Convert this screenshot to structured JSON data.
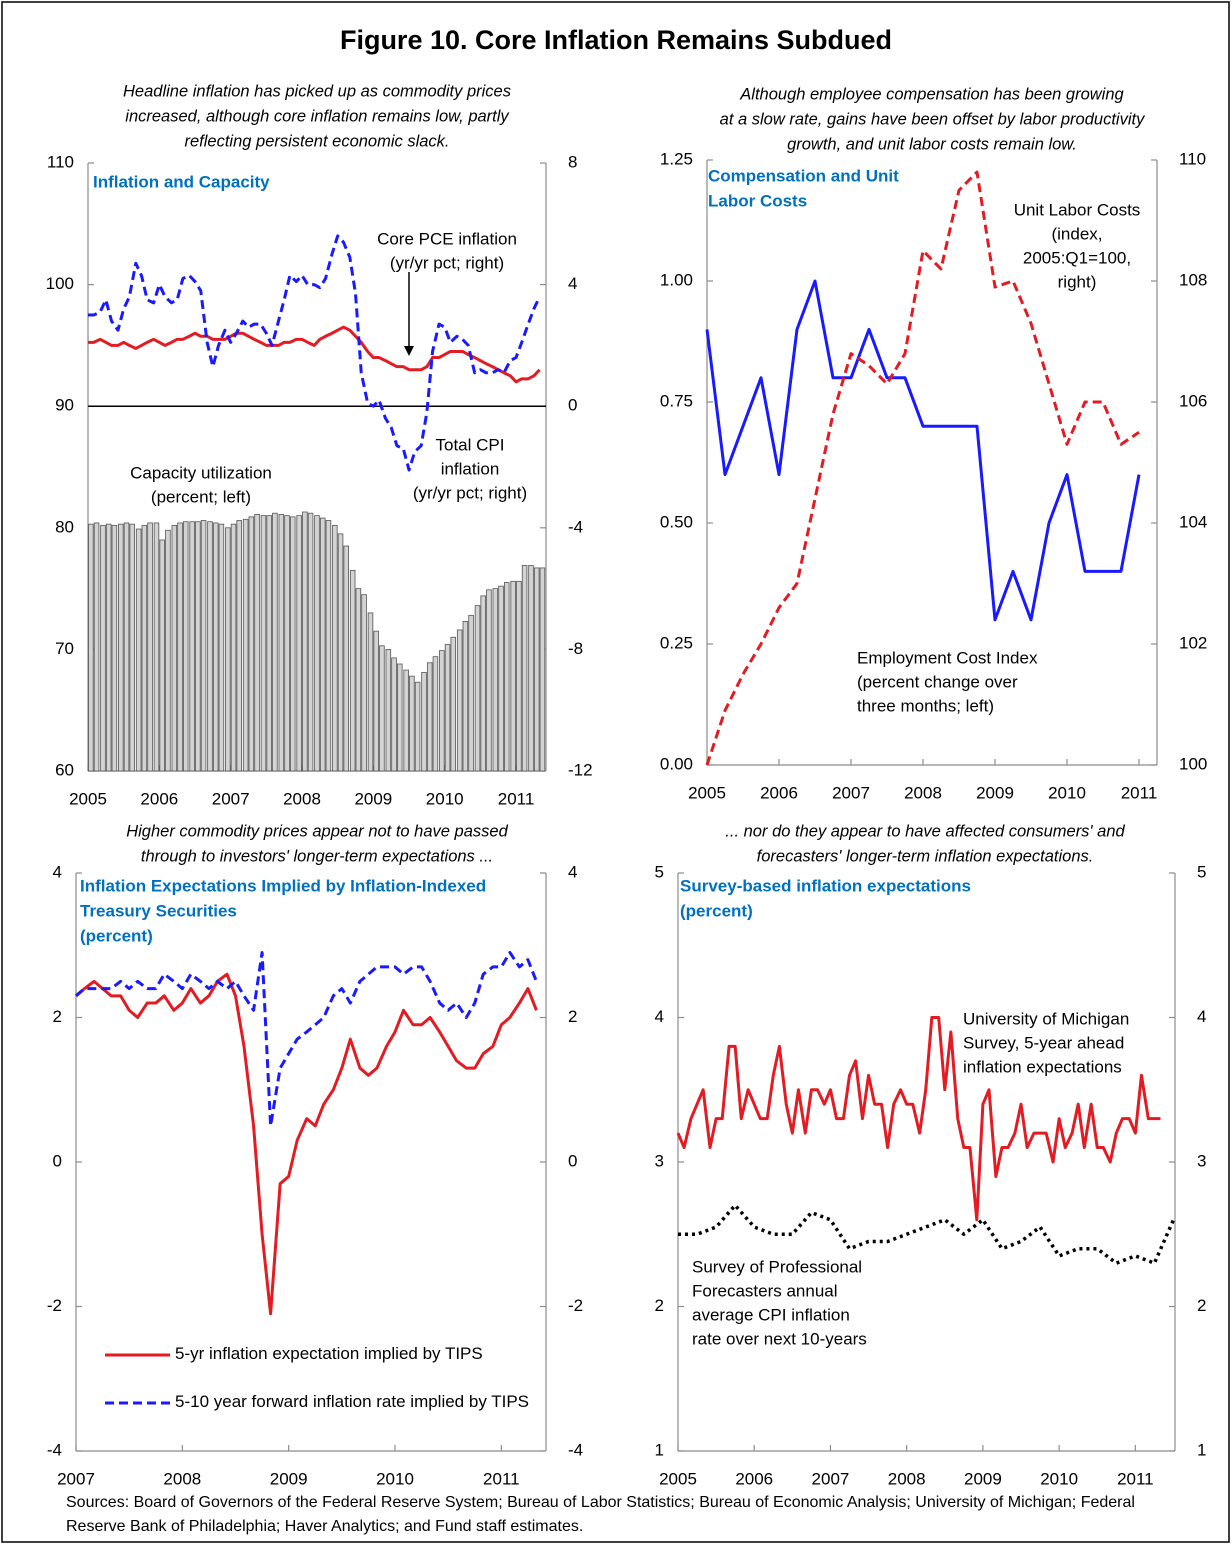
{
  "title": "Figure 10. Core Inflation Remains Subdued",
  "sources": "Sources: Board of Governors of the Federal Reserve System; Bureau of Labor Statistics; Bureau of Economic Analysis; University of Michigan; Federal Reserve Bank of Philadelphia; Haver Analytics; and Fund staff estimates.",
  "chart_data": [
    {
      "type": "combo",
      "subtitle": [
        "Headline inflation has picked up as commodity prices",
        "increased, although core inflation remains low, partly",
        "reflecting persistent economic slack."
      ],
      "title": [
        "Inflation and Capacity"
      ],
      "x": [
        2005,
        2005.08,
        2005.17,
        2005.25,
        2005.33,
        2005.42,
        2005.5,
        2005.58,
        2005.67,
        2005.75,
        2005.83,
        2005.92,
        2006,
        2006.08,
        2006.17,
        2006.25,
        2006.33,
        2006.42,
        2006.5,
        2006.58,
        2006.67,
        2006.75,
        2006.83,
        2006.92,
        2007,
        2007.08,
        2007.17,
        2007.25,
        2007.33,
        2007.42,
        2007.5,
        2007.58,
        2007.67,
        2007.75,
        2007.83,
        2007.92,
        2008,
        2008.08,
        2008.17,
        2008.25,
        2008.33,
        2008.42,
        2008.5,
        2008.58,
        2008.67,
        2008.75,
        2008.83,
        2008.92,
        2009,
        2009.08,
        2009.17,
        2009.25,
        2009.33,
        2009.42,
        2009.5,
        2009.58,
        2009.67,
        2009.75,
        2009.83,
        2009.92,
        2010,
        2010.08,
        2010.17,
        2010.25,
        2010.33,
        2010.42,
        2010.5,
        2010.58,
        2010.67,
        2010.75,
        2010.83,
        2010.92,
        2011,
        2011.08,
        2011.17,
        2011.25,
        2011.33
      ],
      "xlim": [
        2005,
        2011.42
      ],
      "xticks": [
        2005,
        2006,
        2007,
        2008,
        2009,
        2010,
        2011
      ],
      "ylim": [
        60,
        110
      ],
      "yticks": [
        60,
        70,
        80,
        90,
        100,
        110
      ],
      "y2lim": [
        -12,
        8
      ],
      "y2ticks": [
        -12,
        -8,
        -4,
        0,
        4,
        8
      ],
      "zero_line": "y2",
      "series": [
        {
          "type": "bar",
          "label": [
            "Capacity utilization",
            "(percent; left)"
          ],
          "color": "#d3d3d3",
          "values": [
            80.3,
            80.4,
            80.2,
            80.3,
            80.2,
            80.3,
            80.4,
            80.3,
            79.9,
            80.2,
            80.4,
            80.4,
            79.0,
            79.8,
            80.2,
            80.4,
            80.5,
            80.5,
            80.5,
            80.6,
            80.5,
            80.4,
            80.3,
            80.0,
            80.3,
            80.6,
            80.7,
            80.9,
            81.1,
            81.0,
            81.0,
            81.2,
            81.1,
            81.0,
            80.9,
            81.0,
            81.3,
            81.2,
            81.0,
            80.8,
            80.6,
            80.2,
            79.5,
            78.5,
            76.5,
            75.0,
            74.5,
            73.0,
            71.5,
            70.3,
            70.0,
            69.3,
            68.8,
            68.3,
            67.8,
            67.3,
            68.1,
            68.9,
            69.4,
            69.9,
            70.4,
            71.0,
            71.6,
            72.3,
            72.8,
            73.6,
            74.4,
            74.9,
            75.0,
            75.2,
            75.5,
            75.6,
            75.6,
            76.9,
            76.9,
            76.7,
            76.7
          ]
        },
        {
          "type": "line",
          "label": [
            "Core PCE inflation",
            "(yr/yr pct; right)"
          ],
          "color": "#e31b23",
          "dash": "solid",
          "axis": "y2",
          "values": [
            2.1,
            2.1,
            2.2,
            2.1,
            2.0,
            2.0,
            2.1,
            2.0,
            1.9,
            2.0,
            2.1,
            2.2,
            2.1,
            2.0,
            2.1,
            2.2,
            2.2,
            2.3,
            2.4,
            2.3,
            2.3,
            2.2,
            2.2,
            2.2,
            2.3,
            2.4,
            2.4,
            2.3,
            2.2,
            2.1,
            2.0,
            2.0,
            2.0,
            2.1,
            2.1,
            2.2,
            2.2,
            2.1,
            2.0,
            2.2,
            2.3,
            2.4,
            2.5,
            2.6,
            2.5,
            2.3,
            2.1,
            1.8,
            1.6,
            1.6,
            1.5,
            1.4,
            1.3,
            1.3,
            1.2,
            1.2,
            1.2,
            1.3,
            1.6,
            1.6,
            1.7,
            1.8,
            1.8,
            1.8,
            1.7,
            1.6,
            1.5,
            1.4,
            1.3,
            1.2,
            1.1,
            1.0,
            0.8,
            0.9,
            0.9,
            1.0,
            1.2
          ]
        },
        {
          "type": "line",
          "label": [
            "Total CPI",
            "inflation",
            "(yr/yr pct; right)"
          ],
          "color": "#1a1aff",
          "dash": "dashed",
          "axis": "y2",
          "values": [
            3.0,
            3.0,
            3.1,
            3.5,
            2.8,
            2.5,
            3.2,
            3.6,
            4.7,
            4.3,
            3.5,
            3.4,
            4.0,
            3.6,
            3.4,
            3.5,
            4.2,
            4.3,
            4.1,
            3.8,
            2.1,
            1.3,
            2.0,
            2.5,
            2.1,
            2.4,
            2.8,
            2.6,
            2.7,
            2.7,
            2.4,
            2.0,
            2.8,
            3.5,
            4.3,
            4.1,
            4.3,
            4.0,
            4.0,
            3.9,
            4.2,
            5.0,
            5.6,
            5.4,
            4.9,
            3.7,
            1.1,
            0.1,
            0.0,
            0.2,
            -0.4,
            -0.7,
            -1.3,
            -1.4,
            -2.1,
            -1.5,
            -1.3,
            -0.2,
            1.8,
            2.7,
            2.6,
            2.1,
            2.3,
            2.2,
            2.0,
            1.1,
            1.2,
            1.1,
            1.1,
            1.2,
            1.1,
            1.5,
            1.6,
            2.1,
            2.7,
            3.2,
            3.6
          ]
        }
      ]
    },
    {
      "type": "line",
      "subtitle": [
        "Although employee compensation has been growing",
        "at a slow rate, gains have been offset by labor productivity",
        "growth, and unit labor costs remain low."
      ],
      "title": [
        "Compensation and Unit",
        "Labor Costs"
      ],
      "x": [
        2005,
        2005.25,
        2005.5,
        2005.75,
        2006,
        2006.25,
        2006.5,
        2006.75,
        2007,
        2007.25,
        2007.5,
        2007.75,
        2008,
        2008.25,
        2008.5,
        2008.75,
        2009,
        2009.25,
        2009.5,
        2009.75,
        2010,
        2010.25,
        2010.5,
        2010.75,
        2011
      ],
      "xlim": [
        2005,
        2011.25
      ],
      "xticks": [
        2005,
        2006,
        2007,
        2008,
        2009,
        2010,
        2011
      ],
      "ylim": [
        0,
        1.25
      ],
      "yticks": [
        {
          "value": 0,
          "label": "0.00"
        },
        {
          "value": 0.25,
          "label": "0.25"
        },
        {
          "value": 0.5,
          "label": "0.50"
        },
        {
          "value": 0.75,
          "label": "0.75"
        },
        {
          "value": 1,
          "label": "1.00"
        },
        {
          "value": 1.25,
          "label": "1.25"
        }
      ],
      "y2lim": [
        100,
        110
      ],
      "y2ticks": [
        100,
        102,
        104,
        106,
        108,
        110
      ],
      "series": [
        {
          "type": "line",
          "label": [
            "Employment Cost Index",
            "(percent change over",
            "three months; left)"
          ],
          "color": "#1a1aff",
          "dash": "solid",
          "values": [
            0.9,
            0.6,
            0.7,
            0.8,
            0.6,
            0.9,
            1.0,
            0.8,
            0.8,
            0.9,
            0.8,
            0.8,
            0.7,
            0.7,
            0.7,
            0.7,
            0.3,
            0.4,
            0.3,
            0.5,
            0.6,
            0.4,
            0.4,
            0.4,
            0.6
          ]
        },
        {
          "type": "line",
          "label": [
            "Unit Labor Costs",
            "(index,",
            "2005:Q1=100,",
            "right)"
          ],
          "color": "#e31b23",
          "dash": "dashed",
          "axis": "y2",
          "values": [
            100.0,
            100.9,
            101.5,
            102.0,
            102.6,
            103.0,
            104.4,
            105.8,
            106.8,
            106.6,
            106.3,
            106.8,
            108.5,
            108.2,
            109.5,
            109.8,
            107.9,
            108.0,
            107.3,
            106.3,
            105.3,
            106.0,
            106.0,
            105.3,
            105.5
          ]
        }
      ]
    },
    {
      "type": "line",
      "subtitle": [
        "Higher commodity prices appear not to have passed",
        "through to investors' longer-term expectations ..."
      ],
      "title": [
        "Inflation Expectations Implied by Inflation-Indexed",
        "Treasury Securities",
        "(percent)"
      ],
      "x": [
        2007,
        2007.08,
        2007.17,
        2007.25,
        2007.33,
        2007.42,
        2007.5,
        2007.58,
        2007.67,
        2007.75,
        2007.83,
        2007.92,
        2008,
        2008.08,
        2008.17,
        2008.25,
        2008.33,
        2008.42,
        2008.5,
        2008.58,
        2008.67,
        2008.75,
        2008.83,
        2008.92,
        2009,
        2009.08,
        2009.17,
        2009.25,
        2009.33,
        2009.42,
        2009.5,
        2009.58,
        2009.67,
        2009.75,
        2009.83,
        2009.92,
        2010,
        2010.08,
        2010.17,
        2010.25,
        2010.33,
        2010.42,
        2010.5,
        2010.58,
        2010.67,
        2010.75,
        2010.83,
        2010.92,
        2011,
        2011.08,
        2011.17,
        2011.25,
        2011.33
      ],
      "xlim": [
        2007,
        2011.42
      ],
      "xticks": [
        2007,
        2008,
        2009,
        2010,
        2011
      ],
      "ylim": [
        -4,
        4
      ],
      "yticks": [
        -4,
        -2,
        0,
        2,
        4
      ],
      "y2lim": [
        -4,
        4
      ],
      "y2ticks": [
        -4,
        -2,
        0,
        2,
        4
      ],
      "legend": "lower left",
      "series": [
        {
          "type": "line",
          "name": "5-yr inflation expectation implied by TIPS",
          "color": "#e31b23",
          "dash": "solid",
          "values": [
            2.3,
            2.4,
            2.5,
            2.4,
            2.3,
            2.3,
            2.1,
            2.0,
            2.2,
            2.2,
            2.3,
            2.1,
            2.2,
            2.4,
            2.2,
            2.3,
            2.5,
            2.6,
            2.3,
            1.6,
            0.5,
            -1.0,
            -2.1,
            -0.3,
            -0.2,
            0.3,
            0.6,
            0.5,
            0.8,
            1.0,
            1.3,
            1.7,
            1.3,
            1.2,
            1.3,
            1.6,
            1.8,
            2.1,
            1.9,
            1.9,
            2.0,
            1.8,
            1.6,
            1.4,
            1.3,
            1.3,
            1.5,
            1.6,
            1.9,
            2.0,
            2.2,
            2.4,
            2.1
          ]
        },
        {
          "type": "line",
          "name": "5-10 year forward inflation rate implied by TIPS",
          "color": "#1a1aff",
          "dash": "dashed",
          "values": [
            2.3,
            2.4,
            2.4,
            2.4,
            2.4,
            2.5,
            2.4,
            2.5,
            2.4,
            2.4,
            2.6,
            2.5,
            2.4,
            2.6,
            2.5,
            2.4,
            2.5,
            2.4,
            2.5,
            2.3,
            2.1,
            2.9,
            0.5,
            1.3,
            1.5,
            1.7,
            1.8,
            1.9,
            2.0,
            2.3,
            2.4,
            2.2,
            2.5,
            2.6,
            2.7,
            2.7,
            2.7,
            2.6,
            2.7,
            2.7,
            2.5,
            2.2,
            2.1,
            2.2,
            2.0,
            2.2,
            2.6,
            2.7,
            2.7,
            2.9,
            2.7,
            2.8,
            2.5
          ]
        }
      ]
    },
    {
      "type": "line",
      "subtitle": [
        "... nor do they appear to have affected consumers' and",
        "forecasters' longer-term inflation expectations."
      ],
      "title": [
        "Survey-based inflation expectations",
        "(percent)"
      ],
      "xlim": [
        2005,
        2011.52
      ],
      "xticks": [
        2005,
        2006,
        2007,
        2008,
        2009,
        2010,
        2011
      ],
      "ylim": [
        1,
        5
      ],
      "yticks": [
        1,
        2,
        3,
        4,
        5
      ],
      "y2lim": [
        1,
        5
      ],
      "y2ticks": [
        1,
        2,
        3,
        4,
        5
      ],
      "series": [
        {
          "type": "line",
          "label": [
            "University of Michigan",
            "Survey, 5-year ahead",
            "inflation expectations"
          ],
          "color": "#e31b23",
          "dash": "solid",
          "x": [
            2005,
            2005.08,
            2005.17,
            2005.25,
            2005.33,
            2005.42,
            2005.5,
            2005.58,
            2005.67,
            2005.75,
            2005.83,
            2005.92,
            2006,
            2006.08,
            2006.17,
            2006.25,
            2006.33,
            2006.42,
            2006.5,
            2006.58,
            2006.67,
            2006.75,
            2006.83,
            2006.92,
            2007,
            2007.08,
            2007.17,
            2007.25,
            2007.33,
            2007.42,
            2007.5,
            2007.58,
            2007.67,
            2007.75,
            2007.83,
            2007.92,
            2008,
            2008.08,
            2008.17,
            2008.25,
            2008.33,
            2008.42,
            2008.5,
            2008.58,
            2008.67,
            2008.75,
            2008.83,
            2008.92,
            2009,
            2009.08,
            2009.17,
            2009.25,
            2009.33,
            2009.42,
            2009.5,
            2009.58,
            2009.67,
            2009.75,
            2009.83,
            2009.92,
            2010,
            2010.08,
            2010.17,
            2010.25,
            2010.33,
            2010.42,
            2010.5,
            2010.58,
            2010.67,
            2010.75,
            2010.83,
            2010.92,
            2011,
            2011.08,
            2011.17,
            2011.25,
            2011.33
          ],
          "values": [
            3.2,
            3.1,
            3.3,
            3.4,
            3.5,
            3.1,
            3.3,
            3.3,
            3.8,
            3.8,
            3.3,
            3.5,
            3.4,
            3.3,
            3.3,
            3.6,
            3.8,
            3.4,
            3.2,
            3.5,
            3.2,
            3.5,
            3.5,
            3.4,
            3.5,
            3.3,
            3.3,
            3.6,
            3.7,
            3.3,
            3.6,
            3.4,
            3.4,
            3.1,
            3.4,
            3.5,
            3.4,
            3.4,
            3.2,
            3.5,
            4.0,
            4.0,
            3.5,
            3.9,
            3.3,
            3.1,
            3.1,
            2.6,
            3.4,
            3.5,
            2.9,
            3.1,
            3.1,
            3.2,
            3.4,
            3.1,
            3.2,
            3.2,
            3.2,
            3.0,
            3.3,
            3.1,
            3.2,
            3.4,
            3.1,
            3.4,
            3.1,
            3.1,
            3.0,
            3.2,
            3.3,
            3.3,
            3.2,
            3.6,
            3.3,
            3.3,
            3.3
          ]
        },
        {
          "type": "line",
          "label": [
            "Survey of Professional",
            "Forecasters annual",
            "average CPI inflation",
            "rate over next 10-years"
          ],
          "color": "#000000",
          "dash": "dotted",
          "x": [
            2005,
            2005.25,
            2005.5,
            2005.75,
            2006,
            2006.25,
            2006.5,
            2006.75,
            2007,
            2007.25,
            2007.5,
            2007.75,
            2008,
            2008.25,
            2008.5,
            2008.75,
            2009,
            2009.25,
            2009.5,
            2009.75,
            2010,
            2010.25,
            2010.5,
            2010.75,
            2011,
            2011.25,
            2011.5
          ],
          "values": [
            2.5,
            2.5,
            2.55,
            2.7,
            2.55,
            2.5,
            2.5,
            2.65,
            2.6,
            2.4,
            2.45,
            2.45,
            2.5,
            2.55,
            2.6,
            2.5,
            2.6,
            2.4,
            2.45,
            2.55,
            2.35,
            2.4,
            2.4,
            2.3,
            2.35,
            2.3,
            2.6
          ]
        }
      ]
    }
  ]
}
